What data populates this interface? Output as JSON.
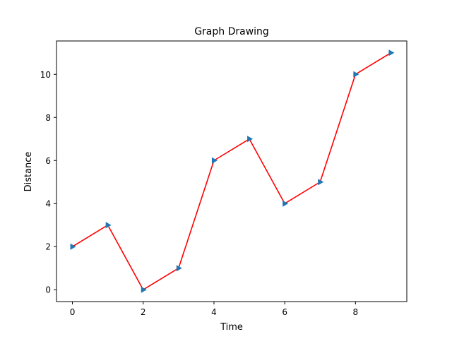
{
  "chart_data": {
    "type": "line",
    "title": "Graph Drawing",
    "xlabel": "Time",
    "ylabel": "Distance",
    "x": [
      0,
      1,
      2,
      3,
      4,
      5,
      6,
      7,
      8,
      9
    ],
    "y": [
      2,
      3,
      0,
      1,
      6,
      7,
      4,
      5,
      10,
      11
    ],
    "xlim": [
      -0.45,
      9.45
    ],
    "ylim": [
      -0.55,
      11.55
    ],
    "xticks": [
      0,
      2,
      4,
      6,
      8
    ],
    "yticks": [
      0,
      2,
      4,
      6,
      8,
      10
    ],
    "grid": false,
    "line_color": "#ff0000",
    "marker": "triangle-right",
    "marker_color": "#1f77b4"
  }
}
